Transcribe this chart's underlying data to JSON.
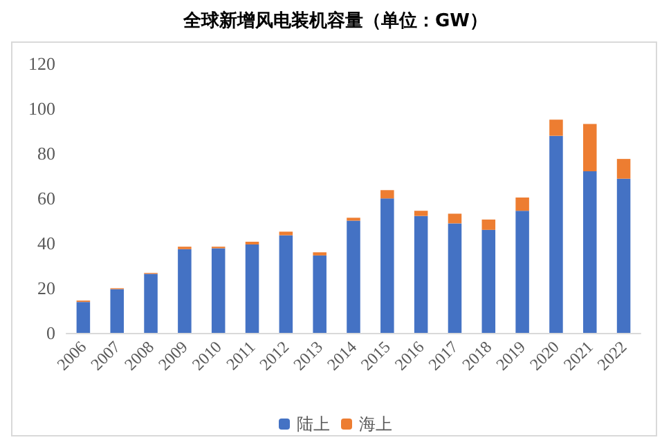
{
  "chart_data": {
    "type": "bar",
    "title": "全球新增风电装机容量（单位：GW）",
    "stacked": true,
    "legend": "bottom",
    "grid": false,
    "categories": [
      "2006",
      "2007",
      "2008",
      "2009",
      "2010",
      "2011",
      "2012",
      "2013",
      "2014",
      "2015",
      "2016",
      "2017",
      "2018",
      "2019",
      "2020",
      "2021",
      "2022"
    ],
    "series": [
      {
        "name": "陆上",
        "color": "#4472c4",
        "values": [
          13.8,
          19.5,
          26.3,
          37.3,
          37.7,
          39.4,
          43.5,
          34.5,
          50.0,
          59.9,
          52.1,
          48.8,
          45.9,
          54.4,
          87.8,
          72.0,
          68.7
        ]
      },
      {
        "name": "海上",
        "color": "#ed7d31",
        "values": [
          0.6,
          0.4,
          0.4,
          1.1,
          0.7,
          1.2,
          1.6,
          1.4,
          1.3,
          3.7,
          2.3,
          4.3,
          4.6,
          5.9,
          7.2,
          21.1,
          8.8
        ]
      }
    ],
    "ylim": [
      0,
      120
    ],
    "yticks": [
      0,
      20,
      40,
      60,
      80,
      100,
      120
    ]
  }
}
